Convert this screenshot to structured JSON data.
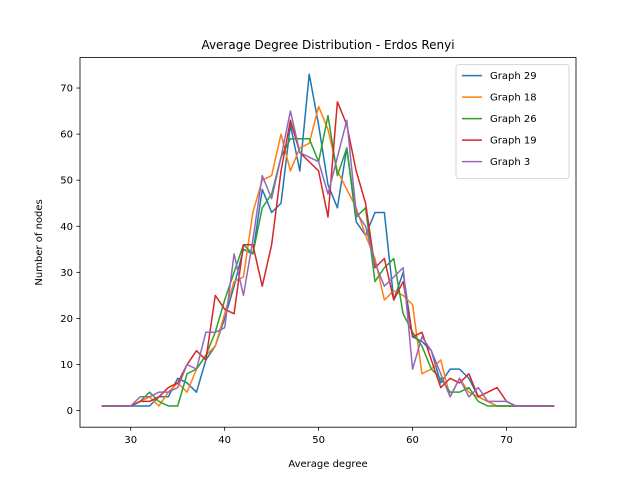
{
  "chart_data": {
    "type": "line",
    "title": "Average Degree Distribution - Erdos Renyi",
    "xlabel": "Average degree",
    "ylabel": "Number of nodes",
    "xlim": [
      24.6,
      77.4
    ],
    "ylim": [
      -3.6,
      76.6
    ],
    "xticks": [
      30,
      40,
      50,
      60,
      70
    ],
    "yticks": [
      0,
      10,
      20,
      30,
      40,
      50,
      60,
      70
    ],
    "legend_position": "top-right",
    "grid": false,
    "series": [
      {
        "name": "Graph 29",
        "color": "#1f77b4",
        "x": [
          27,
          28,
          29,
          30,
          31,
          32,
          33,
          34,
          35,
          36,
          37,
          38,
          39,
          40,
          41,
          42,
          43,
          44,
          45,
          46,
          47,
          48,
          49,
          50,
          51,
          52,
          53,
          54,
          55,
          56,
          57,
          58,
          59,
          60,
          61,
          62,
          63,
          64,
          65,
          66,
          67,
          68,
          69,
          70,
          71,
          72,
          73,
          74,
          75
        ],
        "y": [
          1,
          1,
          1,
          1,
          1,
          1,
          3,
          3,
          7,
          6,
          4,
          11,
          14,
          20,
          27,
          35,
          34,
          48,
          43,
          45,
          62,
          52,
          73,
          62,
          49,
          44,
          57,
          41,
          38,
          43,
          43,
          24,
          30,
          16,
          15,
          13,
          6,
          9,
          9,
          7,
          3,
          2,
          1,
          1,
          1,
          1,
          1,
          1,
          1
        ]
      },
      {
        "name": "Graph 18",
        "color": "#ff7f0e",
        "x": [
          27,
          28,
          29,
          30,
          31,
          32,
          33,
          34,
          35,
          36,
          37,
          38,
          39,
          40,
          41,
          42,
          43,
          44,
          45,
          46,
          47,
          48,
          49,
          50,
          51,
          52,
          53,
          54,
          55,
          56,
          57,
          58,
          59,
          60,
          61,
          62,
          63,
          64,
          65,
          66,
          67,
          68,
          69,
          70,
          71,
          72,
          73,
          74,
          75
        ],
        "y": [
          1,
          1,
          1,
          1,
          2,
          3,
          1,
          4,
          6,
          4,
          9,
          12,
          14,
          21,
          28,
          29,
          43,
          50,
          51,
          60,
          52,
          57,
          58,
          66,
          61,
          52,
          48,
          44,
          38,
          33,
          24,
          26,
          25,
          23,
          8,
          9,
          11,
          3,
          7,
          4,
          3,
          2,
          1,
          1,
          1,
          1,
          1,
          1,
          1
        ]
      },
      {
        "name": "Graph 26",
        "color": "#2ca02c",
        "x": [
          27,
          28,
          29,
          30,
          31,
          32,
          33,
          34,
          35,
          36,
          37,
          38,
          39,
          40,
          41,
          42,
          43,
          44,
          45,
          46,
          47,
          48,
          49,
          50,
          51,
          52,
          53,
          54,
          55,
          56,
          57,
          58,
          59,
          60,
          61,
          62,
          63,
          64,
          65,
          66,
          67,
          68,
          69,
          70,
          71,
          72,
          73,
          74,
          75
        ],
        "y": [
          1,
          1,
          1,
          1,
          2,
          4,
          2,
          1,
          1,
          8,
          9,
          12,
          17,
          24,
          30,
          36,
          34,
          44,
          47,
          55,
          59,
          59,
          59,
          54,
          64,
          51,
          57,
          42,
          44,
          28,
          31,
          33,
          21,
          17,
          14,
          9,
          7,
          4,
          4,
          5,
          2,
          1,
          1,
          1,
          1,
          1,
          1,
          1,
          1
        ]
      },
      {
        "name": "Graph 19",
        "color": "#d62728",
        "x": [
          27,
          28,
          29,
          30,
          31,
          32,
          33,
          34,
          35,
          36,
          37,
          38,
          39,
          40,
          41,
          42,
          43,
          44,
          45,
          46,
          47,
          48,
          49,
          50,
          51,
          52,
          53,
          54,
          55,
          56,
          57,
          58,
          59,
          60,
          61,
          62,
          63,
          64,
          65,
          66,
          67,
          68,
          69,
          70,
          71,
          72,
          73,
          74,
          75
        ],
        "y": [
          1,
          1,
          1,
          1,
          2,
          2,
          3,
          5,
          6,
          10,
          13,
          11,
          25,
          22,
          21,
          36,
          36,
          27,
          36,
          52,
          63,
          56,
          54,
          52,
          42,
          67,
          62,
          52,
          45,
          31,
          33,
          24,
          28,
          16,
          17,
          11,
          5,
          7,
          6,
          8,
          3,
          4,
          5,
          2,
          1,
          1,
          1,
          1,
          1
        ]
      },
      {
        "name": "Graph 3",
        "color": "#9467bd",
        "x": [
          27,
          28,
          29,
          30,
          31,
          32,
          33,
          34,
          35,
          36,
          37,
          38,
          39,
          40,
          41,
          42,
          43,
          44,
          45,
          46,
          47,
          48,
          49,
          50,
          51,
          52,
          53,
          54,
          55,
          56,
          57,
          58,
          59,
          60,
          61,
          62,
          63,
          64,
          65,
          66,
          67,
          68,
          69,
          70,
          71,
          72,
          73,
          74,
          75
        ],
        "y": [
          1,
          1,
          1,
          1,
          3,
          3,
          4,
          4,
          5,
          10,
          9,
          17,
          17,
          18,
          34,
          25,
          37,
          51,
          46,
          55,
          65,
          56,
          55,
          54,
          47,
          55,
          63,
          43,
          40,
          32,
          27,
          29,
          31,
          9,
          16,
          13,
          8,
          3,
          7,
          3,
          5,
          2,
          2,
          2,
          1,
          1,
          1,
          1,
          1
        ]
      }
    ]
  }
}
